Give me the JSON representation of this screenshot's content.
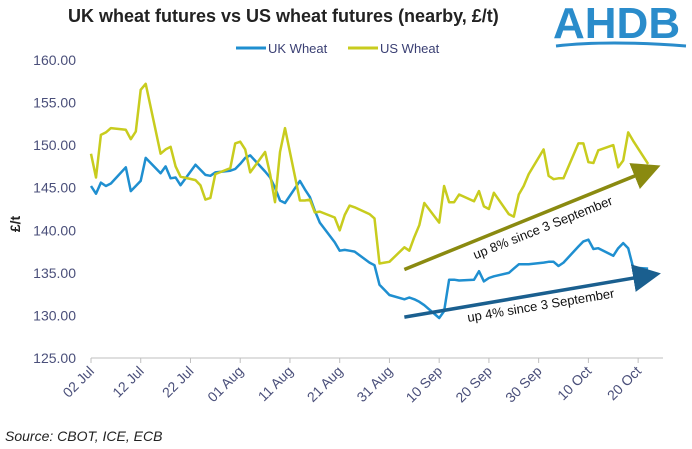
{
  "header": {
    "title": "UK wheat futures vs US wheat futures (nearby, £/t)"
  },
  "logo": {
    "text": "AHDB",
    "color": "#2a8ccb"
  },
  "footer": {
    "source": "Source: CBOT, ICE, ECB"
  },
  "colors": {
    "uk": "#1f8fd0",
    "us": "#c8cc1e",
    "axis": "#4a4f7a",
    "uk_arrow": "#1a5f8f",
    "us_arrow": "#8a8a10"
  },
  "chart_data": {
    "type": "line",
    "title": "UK wheat futures vs US wheat futures (nearby, £/t)",
    "xlabel": "",
    "ylabel": "£/t",
    "ylim": [
      125,
      160
    ],
    "yticks": [
      125,
      130,
      135,
      140,
      145,
      150,
      155,
      160
    ],
    "ytick_labels": [
      "125.00",
      "130.00",
      "135.00",
      "140.00",
      "145.00",
      "150.00",
      "155.00",
      "160.00"
    ],
    "xlim": [
      0,
      115
    ],
    "xtick_days": [
      0,
      10,
      20,
      30,
      40,
      50,
      60,
      70,
      80,
      90,
      100,
      110
    ],
    "xtick_labels": [
      "02 Jul",
      "12 Jul",
      "22 Jul",
      "01 Aug",
      "11 Aug",
      "21 Aug",
      "31 Aug",
      "10 Sep",
      "20 Sep",
      "30 Sep",
      "10 Oct",
      "20 Oct"
    ],
    "legend": {
      "position": "top-center",
      "entries": [
        "UK Wheat",
        "US Wheat"
      ]
    },
    "grid": false,
    "series": [
      {
        "name": "UK Wheat",
        "days": [
          0,
          1,
          2,
          3,
          4,
          7,
          8,
          9,
          10,
          11,
          14,
          15,
          16,
          17,
          18,
          21,
          22,
          23,
          24,
          25,
          28,
          29,
          30,
          31,
          32,
          35,
          36,
          37,
          38,
          39,
          42,
          43,
          44,
          45,
          46,
          49,
          50,
          51,
          52,
          53,
          56,
          57,
          58,
          59,
          60,
          63,
          64,
          65,
          66,
          67,
          70,
          71,
          72,
          73,
          74,
          77,
          78,
          79,
          80,
          81,
          84,
          85,
          86,
          87,
          88,
          91,
          92,
          93,
          94,
          95,
          98,
          99,
          100,
          101,
          102,
          105,
          106,
          107,
          108,
          109,
          112
        ],
        "values": [
          145.2,
          144.3,
          145.6,
          145.2,
          145.5,
          147.4,
          144.6,
          145.2,
          145.8,
          148.5,
          146.7,
          147.5,
          146.1,
          146.2,
          145.3,
          147.7,
          147.1,
          146.5,
          146.4,
          146.8,
          147.0,
          147.2,
          147.8,
          148.5,
          148.8,
          146.9,
          146.2,
          145.0,
          143.5,
          143.2,
          145.8,
          144.8,
          143.9,
          142.3,
          140.9,
          138.6,
          137.6,
          137.7,
          137.6,
          137.5,
          136.2,
          135.9,
          133.6,
          133.0,
          132.4,
          131.9,
          132.1,
          131.9,
          131.6,
          131.2,
          129.7,
          130.5,
          134.2,
          134.2,
          134.1,
          134.2,
          135.2,
          134.0,
          134.4,
          134.6,
          135.0,
          135.5,
          136.0,
          136.0,
          136.0,
          136.2,
          136.3,
          136.3,
          135.8,
          136.2,
          138.1,
          138.7,
          138.9,
          137.8,
          137.9,
          137.0,
          137.9,
          138.5,
          137.9,
          135.6,
          135.5
        ],
        "color": "#1f8fd0"
      },
      {
        "name": "US Wheat",
        "days": [
          0,
          1,
          2,
          3,
          4,
          7,
          8,
          9,
          10,
          11,
          14,
          15,
          16,
          17,
          18,
          21,
          22,
          23,
          24,
          25,
          28,
          29,
          30,
          31,
          32,
          35,
          36,
          37,
          38,
          39,
          42,
          43,
          44,
          45,
          46,
          49,
          50,
          51,
          52,
          53,
          56,
          57,
          58,
          59,
          60,
          63,
          64,
          65,
          66,
          67,
          70,
          71,
          72,
          73,
          74,
          77,
          78,
          79,
          80,
          81,
          84,
          85,
          86,
          87,
          88,
          91,
          92,
          93,
          94,
          95,
          98,
          99,
          100,
          101,
          102,
          105,
          106,
          107,
          108,
          109,
          112
        ],
        "values": [
          149.0,
          146.2,
          151.2,
          151.5,
          152.0,
          151.8,
          150.7,
          151.6,
          156.5,
          157.2,
          149.0,
          149.5,
          149.8,
          147.5,
          146.3,
          145.9,
          145.3,
          143.6,
          143.8,
          146.6,
          147.3,
          150.2,
          150.4,
          149.5,
          146.8,
          149.2,
          146.6,
          143.3,
          149.2,
          152.0,
          143.5,
          143.5,
          143.6,
          142.1,
          142.2,
          141.5,
          140.0,
          141.8,
          142.9,
          142.7,
          141.9,
          141.4,
          136.1,
          136.2,
          136.3,
          138.0,
          137.6,
          139.2,
          140.6,
          143.2,
          140.9,
          145.2,
          143.3,
          143.3,
          144.2,
          143.4,
          144.6,
          142.8,
          142.5,
          144.4,
          141.9,
          141.6,
          144.2,
          145.2,
          146.6,
          149.5,
          146.4,
          146.0,
          146.1,
          146.1,
          150.2,
          150.2,
          148.0,
          147.9,
          149.4,
          150.0,
          147.4,
          148.2,
          151.5,
          150.5,
          147.8
        ],
        "color": "#c8cc1e"
      }
    ],
    "annotations": [
      {
        "text": "up 8% since 3 September",
        "from": {
          "day": 63,
          "value": 135.4
        },
        "to": {
          "day": 114,
          "value": 147.3
        }
      },
      {
        "text": "up 4% since 3 September",
        "from": {
          "day": 63,
          "value": 129.8
        },
        "to": {
          "day": 114,
          "value": 134.8
        }
      }
    ]
  }
}
